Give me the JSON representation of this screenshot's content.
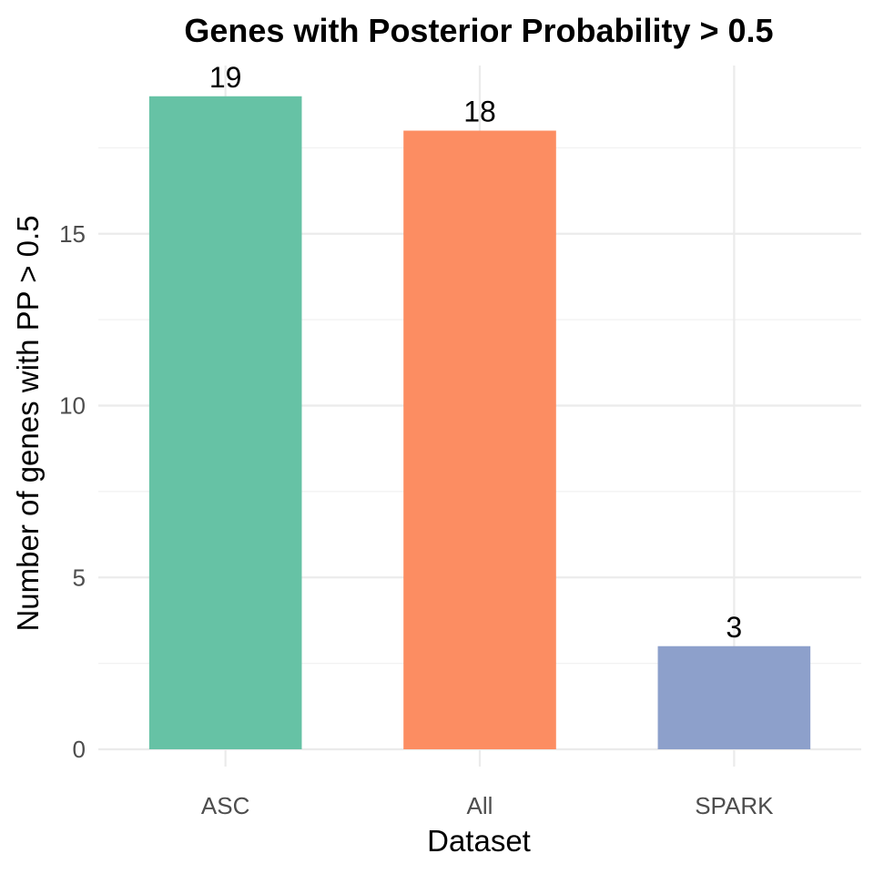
{
  "chart_data": {
    "type": "bar",
    "title": "Genes with Posterior Probability > 0.5",
    "xlabel": "Dataset",
    "ylabel": "Number of genes with PP > 0.5",
    "categories": [
      "ASC",
      "All",
      "SPARK"
    ],
    "values": [
      19,
      18,
      3
    ],
    "data_labels": [
      "19",
      "18",
      "3"
    ],
    "colors": [
      "#66c2a5",
      "#fc8d62",
      "#8da0cb"
    ],
    "ylim": [
      0,
      19.95
    ],
    "yticks": [
      0,
      5,
      10,
      15
    ],
    "ytick_labels": [
      "0",
      "5",
      "10",
      "15"
    ],
    "grid": true,
    "legend": "none"
  }
}
